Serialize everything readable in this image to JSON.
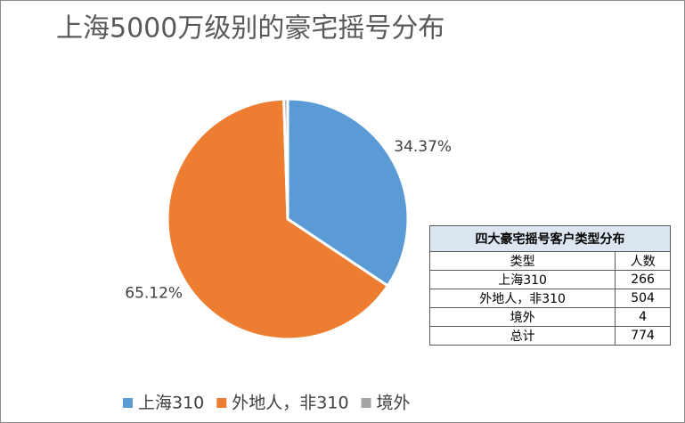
{
  "chart_data": {
    "type": "pie",
    "title": "上海5000万级别的豪宅摇号分布",
    "categories": [
      "上海310",
      "外地人，非310",
      "境外"
    ],
    "values": [
      34.37,
      65.12,
      0.52
    ],
    "value_labels": [
      "34.37%",
      "65.12%",
      null
    ],
    "colors": [
      "#5b9bd5",
      "#ed7d31",
      "#a5a5a5"
    ],
    "legend": "bottom"
  },
  "table": {
    "title": "四大豪宅摇号客户类型分布",
    "header": [
      "类型",
      "人数"
    ],
    "rows": [
      [
        "上海310",
        266
      ],
      [
        "外地人，非310",
        504
      ],
      [
        "境外",
        4
      ],
      [
        "总计",
        774
      ]
    ]
  }
}
